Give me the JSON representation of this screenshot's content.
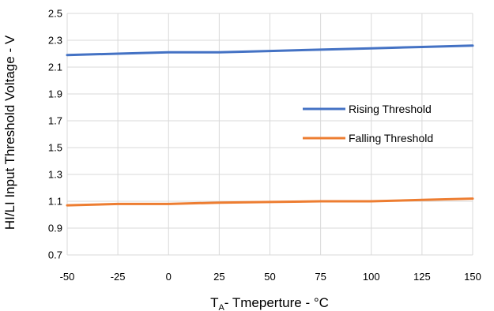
{
  "chart_data": {
    "type": "line",
    "x": [
      -50,
      -25,
      0,
      25,
      50,
      75,
      100,
      125,
      150
    ],
    "series": [
      {
        "name": "Rising Threshold",
        "color": "#4472C4",
        "values": [
          2.19,
          2.2,
          2.21,
          2.21,
          2.22,
          2.23,
          2.24,
          2.25,
          2.26
        ]
      },
      {
        "name": "Falling Threshold",
        "color": "#ED7D31",
        "values": [
          1.07,
          1.08,
          1.08,
          1.09,
          1.095,
          1.1,
          1.1,
          1.11,
          1.12
        ]
      }
    ],
    "xlabel": {
      "main": "T",
      "sub": "A",
      "rest": "- Tmeperture - °C"
    },
    "ylabel": "HI/LI Input Threshold Voltage - V",
    "xlim": [
      -50,
      150
    ],
    "ylim": [
      0.7,
      2.5
    ],
    "xticks": [
      "-50",
      "-25",
      "0",
      "25",
      "50",
      "75",
      "100",
      "125",
      "150"
    ],
    "yticks": [
      "0.7",
      "0.9",
      "1.1",
      "1.3",
      "1.5",
      "1.7",
      "1.9",
      "2.1",
      "2.3",
      "2.5"
    ],
    "grid": true,
    "legend": "right-center"
  }
}
